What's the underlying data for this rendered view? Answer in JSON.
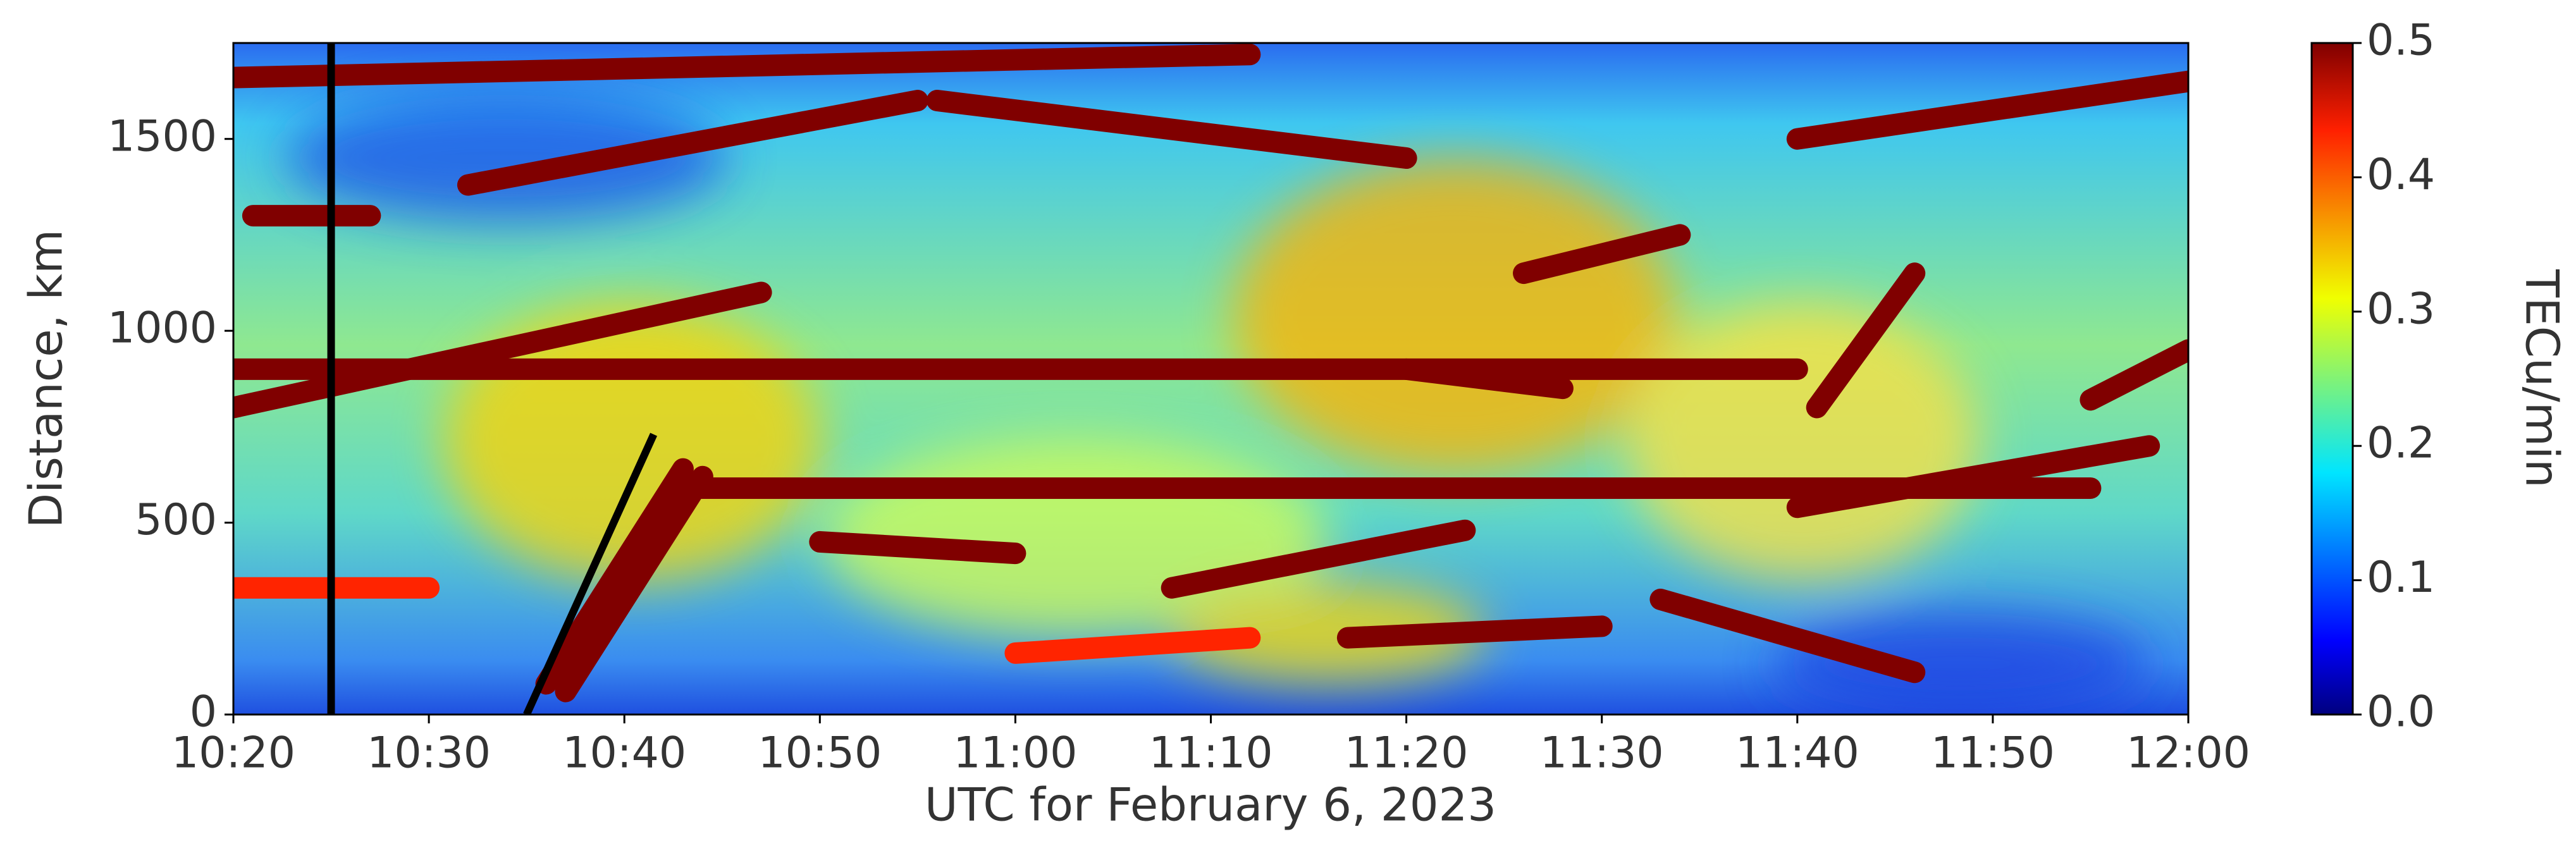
{
  "chart_data": {
    "type": "scatter",
    "xlabel": "UTC for February 6, 2023",
    "ylabel": "Distance, km",
    "xlim": [
      620,
      720
    ],
    "xticks": [
      {
        "value": 620,
        "label": "10:20"
      },
      {
        "value": 630,
        "label": "10:30"
      },
      {
        "value": 640,
        "label": "10:40"
      },
      {
        "value": 650,
        "label": "10:50"
      },
      {
        "value": 660,
        "label": "11:00"
      },
      {
        "value": 670,
        "label": "11:10"
      },
      {
        "value": 680,
        "label": "11:20"
      },
      {
        "value": 690,
        "label": "11:30"
      },
      {
        "value": 700,
        "label": "11:40"
      },
      {
        "value": 710,
        "label": "11:50"
      },
      {
        "value": 720,
        "label": "12:00"
      }
    ],
    "ylim": [
      0,
      1750
    ],
    "yticks": [
      0,
      500,
      1000,
      1500
    ],
    "colorbar": {
      "label": "TECu/min",
      "clim": [
        0,
        0.5
      ],
      "ticks": [
        {
          "value": 0,
          "label": "0.0"
        },
        0.1,
        0.2,
        0.3,
        0.4,
        0.5
      ]
    },
    "series": [
      {
        "x": [
          620,
          700
        ],
        "values": [
          900,
          900
        ],
        "c": 0.5
      },
      {
        "x": [
          643,
          715
        ],
        "values": [
          590,
          590
        ],
        "c": 0.5
      },
      {
        "x": [
          620,
          672
        ],
        "values": [
          1660,
          1720
        ],
        "c": 0.5
      },
      {
        "x": [
          656,
          680
        ],
        "values": [
          1600,
          1450
        ],
        "c": 0.5
      },
      {
        "x": [
          700,
          720
        ],
        "values": [
          1500,
          1650
        ],
        "c": 0.5
      },
      {
        "x": [
          632,
          655
        ],
        "values": [
          1380,
          1600
        ],
        "c": 0.5
      },
      {
        "x": [
          620,
          647
        ],
        "values": [
          800,
          1100
        ],
        "c": 0.5
      },
      {
        "x": [
          668,
          683
        ],
        "values": [
          330,
          480
        ],
        "c": 0.5
      },
      {
        "x": [
          677,
          690
        ],
        "values": [
          200,
          230
        ],
        "c": 0.5
      },
      {
        "x": [
          693,
          706
        ],
        "values": [
          300,
          110
        ],
        "c": 0.5
      },
      {
        "x": [
          715,
          720
        ],
        "values": [
          820,
          950
        ],
        "c": 0.5
      },
      {
        "x": [
          650,
          660
        ],
        "values": [
          450,
          420
        ],
        "c": 0.5
      },
      {
        "x": [
          700,
          718
        ],
        "values": [
          540,
          700
        ],
        "c": 0.5
      },
      {
        "x": [
          621,
          627
        ],
        "values": [
          1300,
          1300
        ],
        "c": 0.5
      },
      {
        "x": [
          636,
          643
        ],
        "values": [
          80,
          640
        ],
        "c": 0.5
      },
      {
        "x": [
          637,
          644
        ],
        "values": [
          60,
          620
        ],
        "c": 0.5
      },
      {
        "x": [
          680,
          688
        ],
        "values": [
          900,
          850
        ],
        "c": 0.5
      },
      {
        "x": [
          686,
          694
        ],
        "values": [
          1150,
          1250
        ],
        "c": 0.5
      },
      {
        "x": [
          701,
          706
        ],
        "values": [
          800,
          1150
        ],
        "c": 0.5
      },
      {
        "x": [
          620,
          630
        ],
        "values": [
          330,
          330
        ],
        "c": 0.42
      },
      {
        "x": [
          660,
          672
        ],
        "values": [
          160,
          200
        ],
        "c": 0.42
      }
    ],
    "lines": [
      {
        "x": [
          625,
          625
        ],
        "values": [
          0,
          1750
        ]
      },
      {
        "x": [
          635,
          641.5
        ],
        "values": [
          0,
          730
        ]
      }
    ]
  }
}
